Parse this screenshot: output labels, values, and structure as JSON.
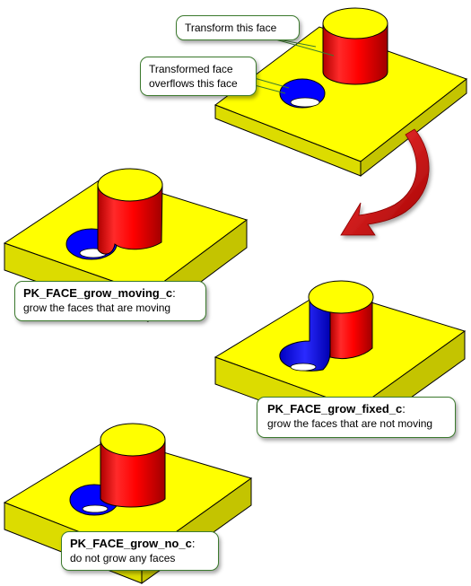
{
  "colors": {
    "top_face": "#ffff00",
    "side_face": "#dede00",
    "front_face": "#c8c800",
    "cylinder_red": "#ff0000",
    "hole_blue": "#0000ff",
    "arrow_red": "#cc0000",
    "callout_border": "#3c7a2e",
    "edge": "#000000"
  },
  "callouts": {
    "transform_face": "Transform this face",
    "overflow_line1": "Transformed face",
    "overflow_line2": "overflows this face",
    "moving_title": "PK_FACE_grow_moving_c",
    "moving_colon": ":",
    "moving_desc": "grow the faces that are moving",
    "fixed_title": "PK_FACE_grow_fixed_c",
    "fixed_colon": ":",
    "fixed_desc": "grow the faces that are not moving",
    "no_title": "PK_FACE_grow_no_c",
    "no_colon": ":",
    "no_desc": "do not grow any faces"
  },
  "icons": {
    "transition_arrow": "curved-arrow-icon"
  }
}
